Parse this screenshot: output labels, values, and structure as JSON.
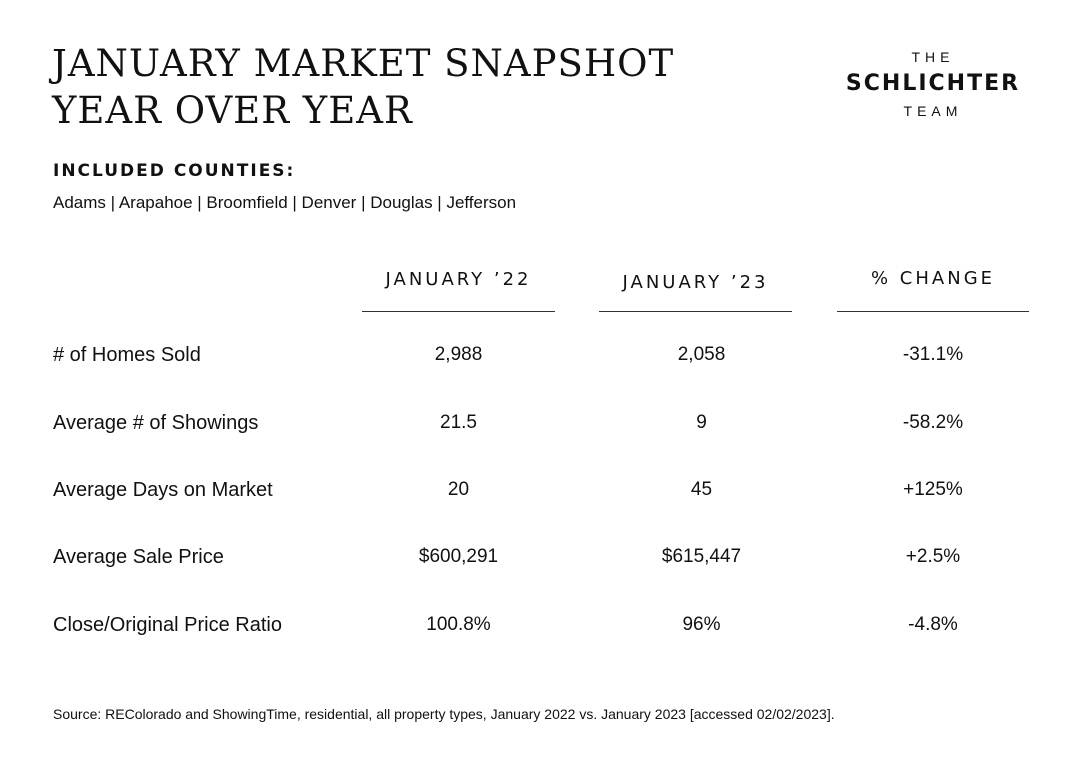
{
  "title": {
    "line1": "JANUARY MARKET SNAPSHOT",
    "line2": "YEAR OVER YEAR"
  },
  "logo": {
    "top": "THE",
    "name": "SCHLICHTER",
    "bottom": "TEAM"
  },
  "counties": {
    "heading": "INCLUDED COUNTIES:",
    "list": "Adams | Arapahoe | Broomfield | Denver | Douglas | Jefferson"
  },
  "table": {
    "headers": [
      "JANUARY ’22",
      "JANUARY ’23",
      "% CHANGE"
    ],
    "rows": [
      {
        "label": "# of Homes Sold",
        "jan22": "2,988",
        "jan23": "2,058",
        "change": "-31.1%"
      },
      {
        "label": "Average # of Showings",
        "jan22": "21.5",
        "jan23": "9",
        "change": "-58.2%"
      },
      {
        "label": "Average Days on Market",
        "jan22": "20",
        "jan23": "45",
        "change": "+125%"
      },
      {
        "label": "Average Sale Price",
        "jan22": "$600,291",
        "jan23": "$615,447",
        "change": "+2.5%"
      },
      {
        "label": "Close/Original Price Ratio",
        "jan22": "100.8%",
        "jan23": "96%",
        "change": "-4.8%"
      }
    ]
  },
  "source": "Source: REColorado and ShowingTime, residential, all property types, January 2022 vs. January 2023 [accessed 02/02/2023]."
}
